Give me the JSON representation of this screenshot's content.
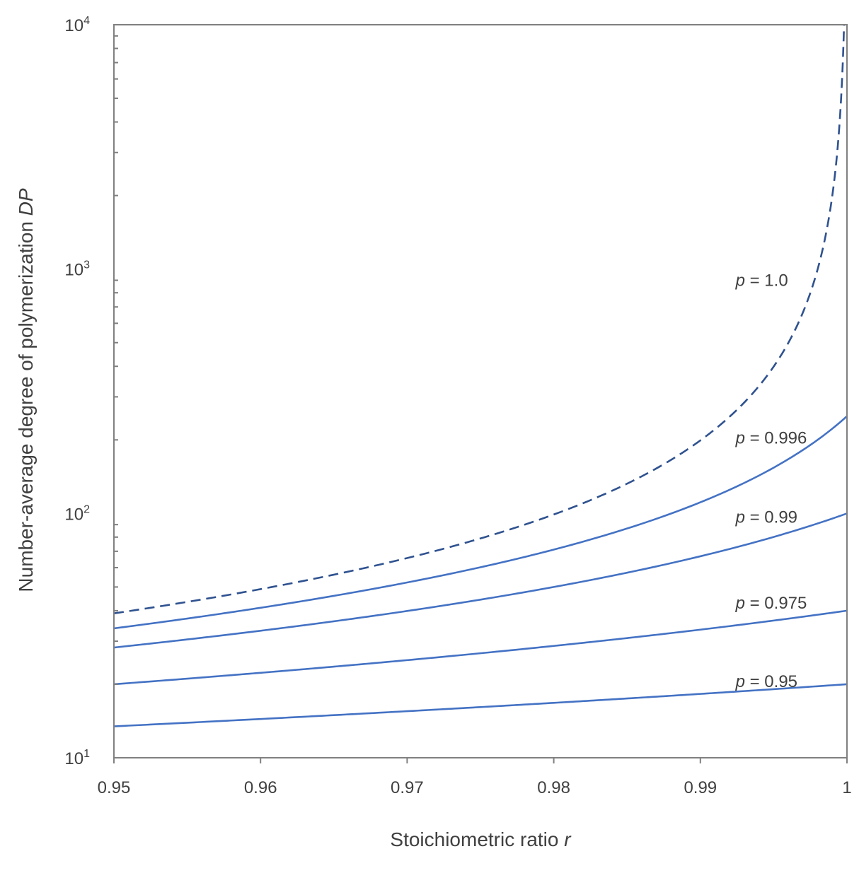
{
  "chart_data": {
    "type": "line",
    "title": "",
    "xlabel": "Stoichiometric ratio",
    "xlabel_var": "r",
    "ylabel": "Number-average degree of polymerization",
    "ylabel_var": "DP",
    "xlim": [
      0.95,
      1.0
    ],
    "ylim": [
      10,
      10000
    ],
    "yscale": "log",
    "grid": false,
    "x_ticks": [
      "0.95",
      "0.96",
      "0.97",
      "0.98",
      "0.99",
      "1"
    ],
    "y_ticks": [
      {
        "base": "10",
        "exp": "1"
      },
      {
        "base": "10",
        "exp": "2"
      },
      {
        "base": "10",
        "exp": "3"
      },
      {
        "base": "10",
        "exp": "4"
      }
    ],
    "series": [
      {
        "name_var": "p",
        "name": " = 1.0",
        "p": 1.0,
        "style": "dashed",
        "color": "#2f528f",
        "x": [
          0.95,
          0.96,
          0.97,
          0.98,
          0.99,
          0.995,
          0.998,
          0.9998
        ],
        "y": [
          39,
          49,
          65.7,
          99,
          199,
          399,
          999,
          9999
        ]
      },
      {
        "name_var": "p",
        "name": " = 0.996",
        "p": 0.996,
        "style": "solid",
        "color": "#4472c4",
        "x": [
          0.95,
          0.96,
          0.97,
          0.98,
          0.99,
          1.0
        ],
        "y": [
          33.7,
          40.8,
          51.7,
          70.5,
          111,
          250
        ]
      },
      {
        "name_var": "p",
        "name": " = 0.99",
        "p": 0.99,
        "style": "solid",
        "color": "#4472c4",
        "x": [
          0.95,
          0.96,
          0.97,
          0.98,
          0.99,
          1.0
        ],
        "y": [
          28.1,
          32.6,
          38.8,
          47.9,
          62.6,
          100
        ]
      },
      {
        "name_var": "p",
        "name": " = 0.975",
        "p": 0.975,
        "style": "solid",
        "color": "#4472c4",
        "x": [
          0.95,
          0.96,
          0.97,
          0.98,
          0.99,
          1.0
        ],
        "y": [
          20,
          22.3,
          25.1,
          28.8,
          33.6,
          40
        ]
      },
      {
        "name_var": "p",
        "name": " = 0.95",
        "p": 0.95,
        "style": "solid",
        "color": "#4472c4",
        "x": [
          0.95,
          0.96,
          0.97,
          0.98,
          0.99,
          1.0
        ],
        "y": [
          13.4,
          14.3,
          15.4,
          16.6,
          18.1,
          20
        ]
      }
    ]
  }
}
